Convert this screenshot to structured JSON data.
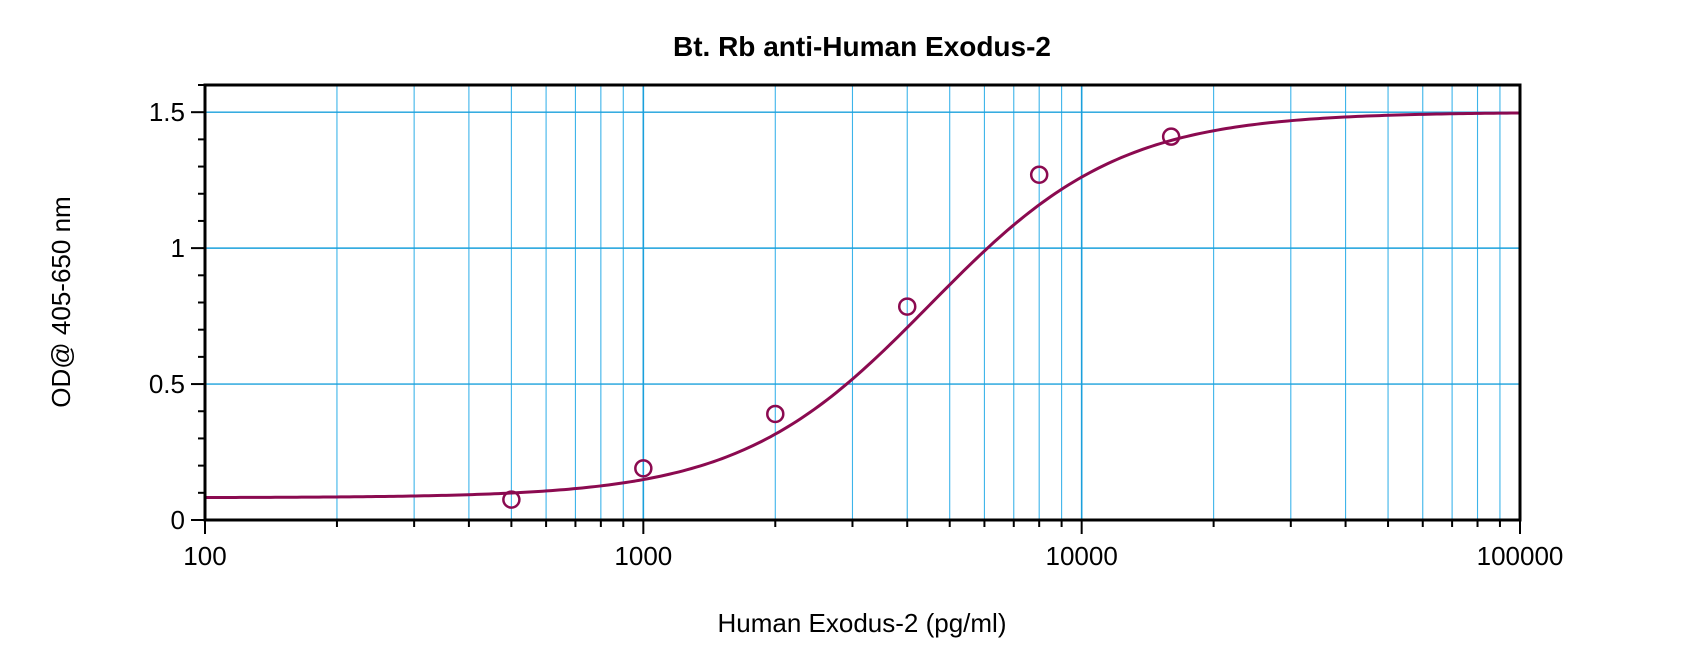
{
  "chart_data": {
    "type": "scatter",
    "title": "Bt. Rb anti-Human Exodus-2",
    "xlabel": "Human Exodus-2 (pg/ml)",
    "ylabel": "OD@ 405-650 nm",
    "xscale": "log",
    "xlim": [
      100,
      100000
    ],
    "ylim": [
      0,
      1.6
    ],
    "grid": true,
    "x_tick_labels": [
      "100",
      "1000",
      "10000",
      "100000"
    ],
    "x_tick_values": [
      100,
      1000,
      10000,
      100000
    ],
    "y_tick_labels": [
      "0",
      "0.5",
      "1",
      "1.5"
    ],
    "y_tick_values": [
      0,
      0.5,
      1,
      1.5
    ],
    "series": [
      {
        "points": [
          {
            "x": 500,
            "y": 0.075
          },
          {
            "x": 1000,
            "y": 0.19
          },
          {
            "x": 2000,
            "y": 0.39
          },
          {
            "x": 4000,
            "y": 0.785
          },
          {
            "x": 8000,
            "y": 1.27
          },
          {
            "x": 16000,
            "y": 1.41
          }
        ]
      }
    ],
    "fit_curve": {
      "model": "4PL",
      "bottom": 0.082,
      "top": 1.5,
      "ec50": 4500,
      "hill": 2.0
    }
  },
  "colors": {
    "series": "#8b0a50",
    "major_grid": "#1aa0dc",
    "minor_grid": "#3db4ea",
    "axis": "#000000"
  }
}
